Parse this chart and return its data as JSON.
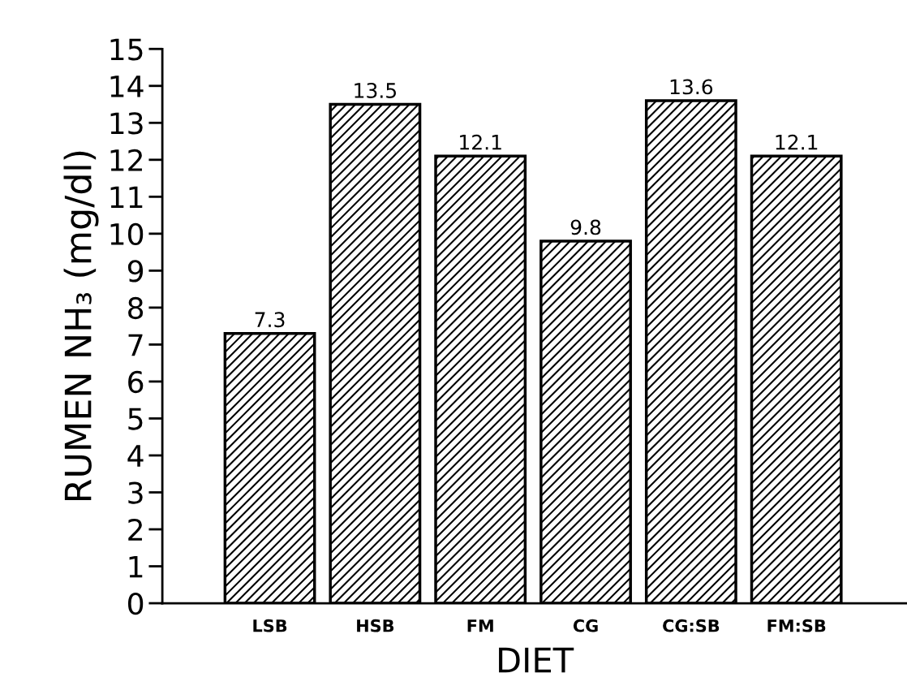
{
  "chart_data": {
    "type": "bar",
    "xlabel": "DIET",
    "ylabel": "RUMEN NH₃ (mg/dl)",
    "categories": [
      "LSB",
      "HSB",
      "FM",
      "CG",
      "CG:SB",
      "FM:SB"
    ],
    "values": [
      7.3,
      13.5,
      12.1,
      9.8,
      13.6,
      12.1
    ],
    "color": "#000000",
    "ylim": [
      0,
      15
    ],
    "yticks": [
      0,
      1,
      2,
      3,
      4,
      5,
      6,
      7,
      8,
      9,
      10,
      11,
      12,
      13,
      14,
      15
    ],
    "data_labels": true
  }
}
